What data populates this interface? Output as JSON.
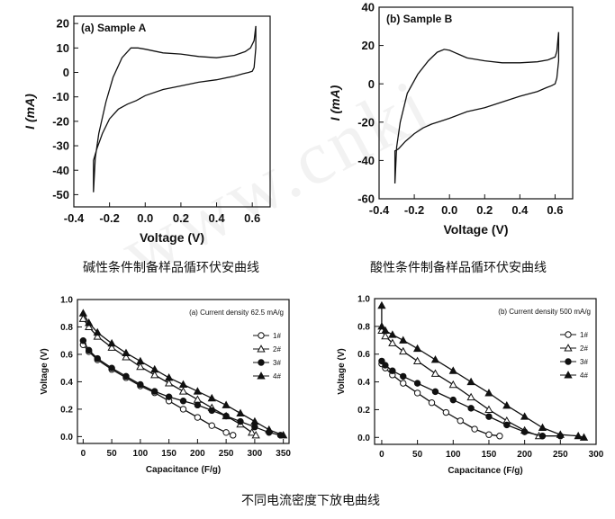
{
  "watermark": "www.cnki",
  "captions": {
    "top_left": "碱性条件制备样品循环伏安曲线",
    "top_right": "酸性条件制备样品循环伏安曲线",
    "bottom": "不同电流密度下放电曲线"
  },
  "chart_data": [
    {
      "type": "line",
      "title": "(a) Sample A",
      "xlabel": "Voltage (V)",
      "ylabel": "I (mA)",
      "xlim": [
        -0.4,
        0.7
      ],
      "ylim": [
        -55,
        23
      ],
      "xticks": [
        -0.4,
        -0.2,
        0.0,
        0.2,
        0.4,
        0.6
      ],
      "xtick_labels": [
        "-0.4",
        "-0.2",
        "0.0",
        "0.2",
        "0.4",
        "0.6"
      ],
      "yticks": [
        -50,
        -40,
        -30,
        -20,
        -10,
        0,
        10,
        20
      ],
      "ytick_labels": [
        "-50",
        "-40",
        "-30",
        "-20",
        "-10",
        "0",
        "10",
        "20"
      ],
      "series": [
        {
          "x": [
            -0.29,
            -0.28,
            -0.26,
            -0.22,
            -0.18,
            -0.13,
            -0.08,
            -0.04,
            0.0,
            0.1,
            0.2,
            0.3,
            0.4,
            0.5,
            0.56,
            0.59,
            0.61,
            0.62,
            0.62,
            0.61,
            0.6,
            0.58,
            0.55,
            0.5,
            0.4,
            0.3,
            0.2,
            0.1,
            0.0,
            -0.05,
            -0.1,
            -0.15,
            -0.2,
            -0.24,
            -0.27,
            -0.29
          ],
          "y": [
            -49,
            -35,
            -25,
            -12,
            -2,
            6,
            10,
            10,
            9.5,
            8,
            7.5,
            6.5,
            6,
            7,
            8.5,
            10,
            13,
            19,
            10,
            2,
            0.5,
            0,
            -0.5,
            -1.5,
            -3,
            -4,
            -5.5,
            -7,
            -9.5,
            -11.5,
            -13,
            -15,
            -19,
            -25,
            -31,
            -36
          ]
        }
      ]
    },
    {
      "type": "line",
      "title": "(b) Sample B",
      "xlabel": "Voltage (V)",
      "ylabel": "I (mA)",
      "xlim": [
        -0.4,
        0.7
      ],
      "ylim": [
        -60,
        40
      ],
      "xticks": [
        -0.4,
        -0.2,
        0.0,
        0.2,
        0.4,
        0.6
      ],
      "xtick_labels": [
        "-0.4",
        "-0.2",
        "0.0",
        "0.2",
        "0.4",
        "0.6"
      ],
      "yticks": [
        -60,
        -40,
        -20,
        0,
        20,
        40
      ],
      "ytick_labels": [
        "-60",
        "-40",
        "-20",
        "0",
        "20",
        "40"
      ],
      "series": [
        {
          "x": [
            -0.31,
            -0.3,
            -0.28,
            -0.24,
            -0.18,
            -0.12,
            -0.07,
            -0.03,
            0.0,
            0.1,
            0.2,
            0.3,
            0.4,
            0.5,
            0.56,
            0.6,
            0.61,
            0.62,
            0.62,
            0.61,
            0.6,
            0.58,
            0.55,
            0.5,
            0.4,
            0.3,
            0.2,
            0.1,
            0.0,
            -0.05,
            -0.1,
            -0.15,
            -0.2,
            -0.25,
            -0.29,
            -0.31
          ],
          "y": [
            -52,
            -33,
            -20,
            -5,
            5,
            12,
            16.5,
            18,
            17.5,
            13.5,
            12,
            11,
            11,
            11.5,
            12.5,
            14,
            17,
            27,
            12,
            3,
            0,
            -1,
            -2,
            -4,
            -6.5,
            -9.5,
            -12.5,
            -14.5,
            -18,
            -19.5,
            -21,
            -23,
            -26,
            -30,
            -34,
            -35
          ]
        }
      ]
    },
    {
      "type": "line",
      "title": "(a) Current density 62.5 mA/g",
      "xlabel": "Capacitance (F/g)",
      "ylabel": "Voltage (V)",
      "xlim": [
        -10,
        360
      ],
      "ylim": [
        -0.05,
        1.0
      ],
      "xticks": [
        0,
        50,
        100,
        150,
        200,
        250,
        300,
        350
      ],
      "xtick_labels": [
        "0",
        "50",
        "100",
        "150",
        "200",
        "250",
        "300",
        "350"
      ],
      "yticks": [
        0.0,
        0.2,
        0.4,
        0.6,
        0.8,
        1.0
      ],
      "ytick_labels": [
        "0.0",
        "0.2",
        "0.4",
        "0.6",
        "0.8",
        "1.0"
      ],
      "legend_position": "right",
      "series": [
        {
          "name": "1#",
          "marker": "circle-open",
          "x": [
            0,
            10,
            25,
            50,
            75,
            100,
            125,
            150,
            175,
            200,
            225,
            250,
            262
          ],
          "y": [
            0.67,
            0.62,
            0.56,
            0.49,
            0.43,
            0.37,
            0.32,
            0.26,
            0.2,
            0.14,
            0.08,
            0.03,
            0.01
          ]
        },
        {
          "name": "2#",
          "marker": "triangle-open",
          "x": [
            0,
            10,
            25,
            50,
            75,
            100,
            125,
            150,
            175,
            200,
            225,
            250,
            275,
            295,
            302
          ],
          "y": [
            0.86,
            0.8,
            0.73,
            0.65,
            0.58,
            0.51,
            0.45,
            0.39,
            0.33,
            0.27,
            0.21,
            0.15,
            0.09,
            0.03,
            0.01
          ]
        },
        {
          "name": "3#",
          "marker": "circle-filled",
          "x": [
            0,
            10,
            25,
            50,
            75,
            100,
            125,
            150,
            175,
            200,
            225,
            250,
            275,
            300,
            325,
            345
          ],
          "y": [
            0.7,
            0.63,
            0.57,
            0.5,
            0.44,
            0.38,
            0.33,
            0.29,
            0.26,
            0.23,
            0.19,
            0.15,
            0.11,
            0.07,
            0.03,
            0.01
          ]
        },
        {
          "name": "4#",
          "marker": "triangle-filled",
          "x": [
            0,
            10,
            25,
            50,
            75,
            100,
            125,
            150,
            175,
            200,
            225,
            250,
            275,
            300,
            325,
            350
          ],
          "y": [
            0.9,
            0.83,
            0.76,
            0.68,
            0.61,
            0.55,
            0.49,
            0.43,
            0.38,
            0.33,
            0.28,
            0.23,
            0.17,
            0.11,
            0.05,
            0.01
          ]
        }
      ]
    },
    {
      "type": "line",
      "title": "(b) Current density 500 mA/g",
      "xlabel": "Capacitance (F/g)",
      "ylabel": "Voltage (V)",
      "xlim": [
        -10,
        300
      ],
      "ylim": [
        -0.05,
        1.0
      ],
      "xticks": [
        0,
        50,
        100,
        150,
        200,
        250,
        300
      ],
      "xtick_labels": [
        "0",
        "50",
        "100",
        "150",
        "200",
        "250",
        "300"
      ],
      "yticks": [
        0.0,
        0.2,
        0.4,
        0.6,
        0.8,
        1.0
      ],
      "ytick_labels": [
        "0.0",
        "0.2",
        "0.4",
        "0.6",
        "0.8",
        "1.0"
      ],
      "legend_position": "right",
      "series": [
        {
          "name": "1#",
          "marker": "circle-open",
          "x": [
            0,
            5,
            15,
            30,
            50,
            70,
            90,
            110,
            130,
            150,
            165
          ],
          "y": [
            0.53,
            0.5,
            0.45,
            0.39,
            0.32,
            0.25,
            0.18,
            0.12,
            0.06,
            0.02,
            0.01
          ]
        },
        {
          "name": "2#",
          "marker": "triangle-open",
          "x": [
            0,
            5,
            15,
            30,
            50,
            75,
            100,
            125,
            150,
            175,
            200,
            220
          ],
          "y": [
            0.77,
            0.73,
            0.68,
            0.62,
            0.55,
            0.46,
            0.38,
            0.29,
            0.2,
            0.12,
            0.05,
            0.01
          ]
        },
        {
          "name": "3#",
          "marker": "circle-filled",
          "x": [
            0,
            5,
            15,
            30,
            50,
            75,
            100,
            125,
            150,
            175,
            200,
            225,
            250
          ],
          "y": [
            0.55,
            0.52,
            0.48,
            0.44,
            0.39,
            0.33,
            0.27,
            0.21,
            0.15,
            0.09,
            0.04,
            0.01,
            0.01
          ]
        },
        {
          "name": "4#",
          "marker": "triangle-filled",
          "x": [
            0,
            0,
            5,
            15,
            30,
            50,
            75,
            100,
            125,
            150,
            175,
            200,
            225,
            250,
            275,
            283
          ],
          "y": [
            0.95,
            0.8,
            0.77,
            0.74,
            0.7,
            0.64,
            0.56,
            0.48,
            0.4,
            0.32,
            0.23,
            0.15,
            0.07,
            0.02,
            0.01,
            0.0
          ]
        }
      ]
    }
  ]
}
